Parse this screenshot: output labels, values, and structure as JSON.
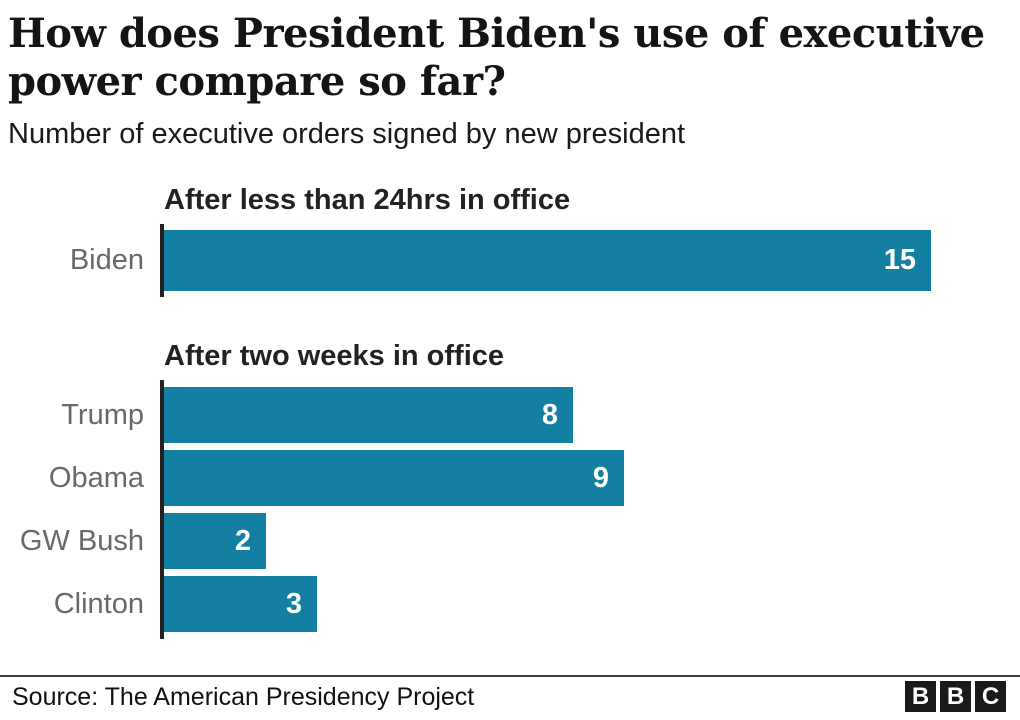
{
  "header": {
    "title": "How does President Biden's use of executive power compare so far?",
    "subtitle": "Number of executive orders signed by new president"
  },
  "chart_data": [
    {
      "type": "bar",
      "orientation": "horizontal",
      "title": "After less than 24hrs in office",
      "categories": [
        "Biden"
      ],
      "values": [
        15
      ],
      "value_labels": [
        "15"
      ],
      "xlim": [
        0,
        15
      ],
      "bar_color": "#1380a1",
      "grid": false,
      "legend": "none"
    },
    {
      "type": "bar",
      "orientation": "horizontal",
      "title": "After two weeks in office",
      "categories": [
        "Trump",
        "Obama",
        "GW Bush",
        "Clinton"
      ],
      "values": [
        8,
        9,
        2,
        3
      ],
      "value_labels": [
        "8",
        "9",
        "2",
        "3"
      ],
      "xlim": [
        0,
        15
      ],
      "bar_color": "#1380a1",
      "grid": false,
      "legend": "none"
    }
  ],
  "footer": {
    "source": "Source: The American Presidency Project",
    "logo_letters": [
      "B",
      "B",
      "C"
    ]
  },
  "colors": {
    "bar": "#1380a1",
    "category_label": "#696969",
    "axis": "#222222",
    "title_text": "#141414",
    "value_label": "#ffffff"
  }
}
